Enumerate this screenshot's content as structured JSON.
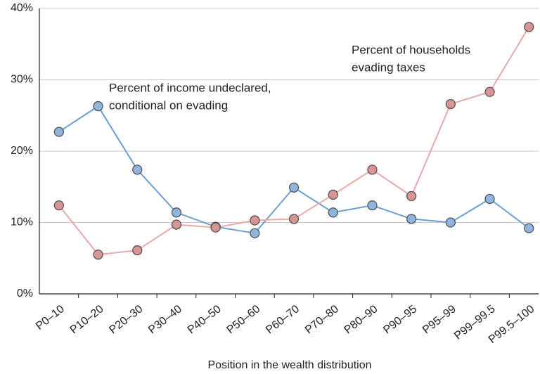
{
  "chart_data": {
    "type": "line",
    "x_label": "Position in the wealth distribution",
    "categories": [
      "P0–10",
      "P10–20",
      "P20–30",
      "P30–40",
      "P40–50",
      "P50–60",
      "P60–70",
      "P70–80",
      "P80–90",
      "P90–95",
      "P95–99",
      "P99–99.5",
      "P99.5–100"
    ],
    "series": [
      {
        "color": "#6a9fd4",
        "marker_color": "#8fb4df",
        "values": [
          22.7,
          26.3,
          17.4,
          11.4,
          9.4,
          8.5,
          14.9,
          11.4,
          12.4,
          10.5,
          10.0,
          13.3,
          9.2
        ]
      },
      {
        "color": "#e8a9a8",
        "marker_color": "#d99593",
        "values": [
          12.4,
          5.5,
          6.1,
          9.7,
          9.3,
          10.3,
          10.5,
          13.9,
          17.4,
          13.7,
          26.6,
          28.3,
          37.4
        ]
      }
    ],
    "annotations": [
      {
        "lines": [
          "Percent of income undeclared,",
          "conditional on evading"
        ],
        "color": "#5b9bd5"
      },
      {
        "lines": [
          "Percent of households",
          "evading taxes"
        ],
        "color": "#e29896"
      }
    ],
    "ylim": [
      0,
      40
    ],
    "yticks": [
      {
        "value": 0,
        "label": "0%"
      },
      {
        "value": 10,
        "label": "10%"
      },
      {
        "value": 20,
        "label": "20%"
      },
      {
        "value": 30,
        "label": "30%"
      },
      {
        "value": 40,
        "label": "40%"
      }
    ],
    "grid": true
  }
}
